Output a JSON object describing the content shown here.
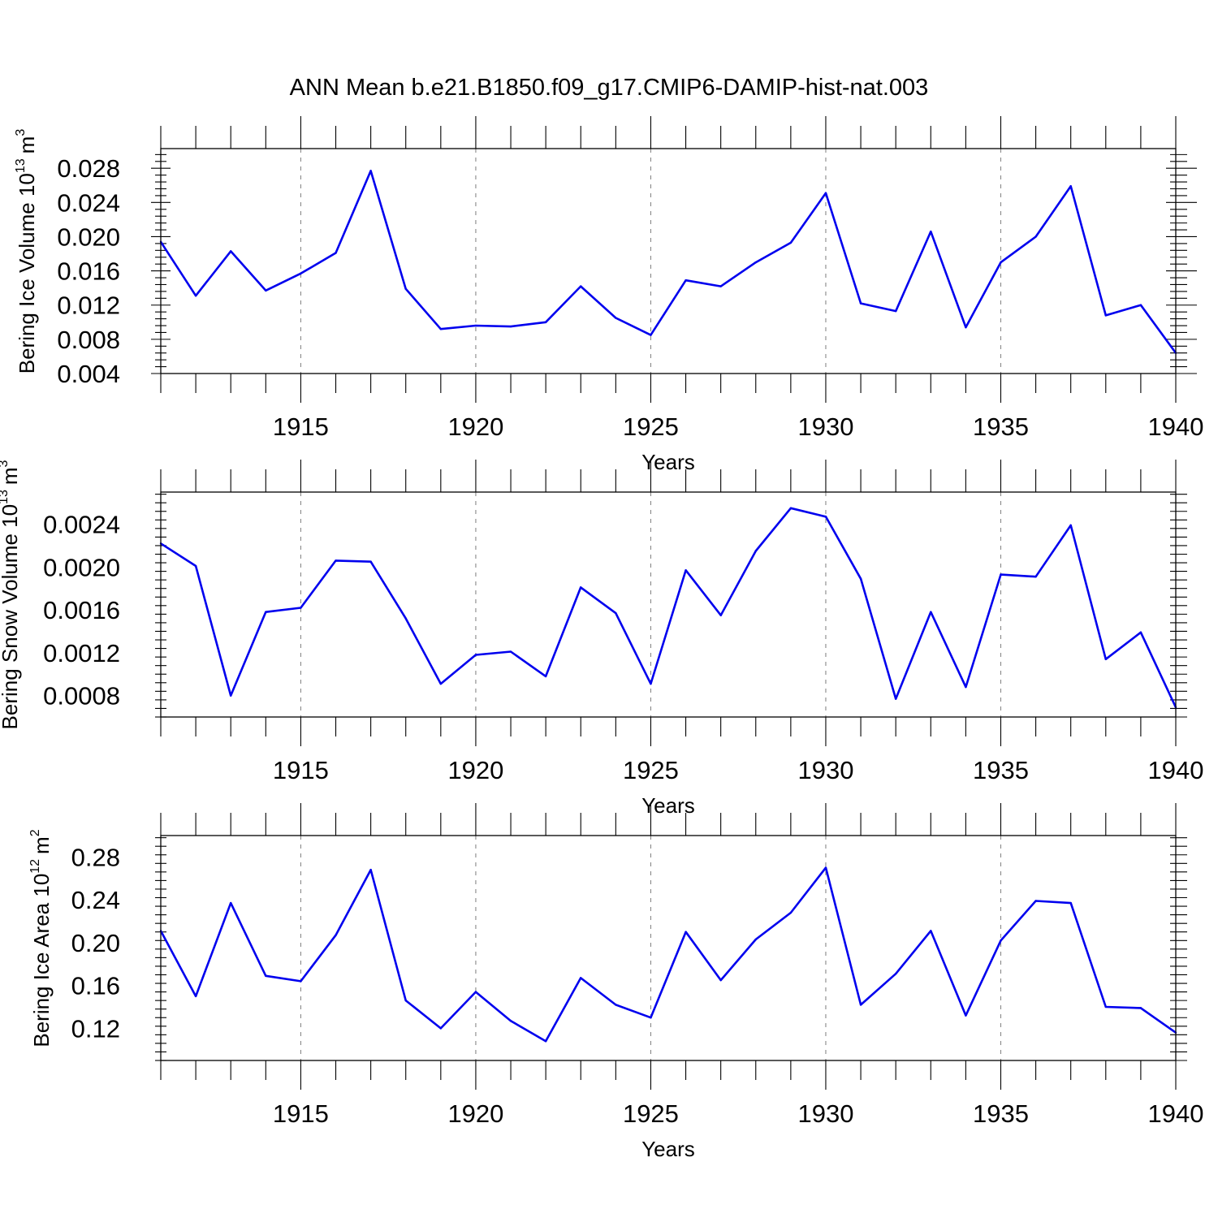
{
  "title": "ANN Mean b.e21.B1850.f09_g17.CMIP6-DAMIP-hist-nat.003",
  "colors": {
    "series": "#0000ee",
    "grid": "#888888",
    "axes": "#000000"
  },
  "chart_data": [
    {
      "type": "line",
      "ylabel": "Bering Ice Volume 10",
      "ylabel_exp": "13",
      "ylabel_unit": "m",
      "ylabel_unit_exp": "3",
      "xlabel": "Years",
      "xlim": [
        1911,
        1940
      ],
      "ylim": [
        0.004,
        0.0303
      ],
      "yticks": [
        0.004,
        0.008,
        0.012,
        0.016,
        0.02,
        0.024,
        0.028
      ],
      "ytick_labels": [
        "0.004",
        "0.008",
        "0.012",
        "0.016",
        "0.020",
        "0.024",
        "0.028"
      ],
      "xticks": [
        1915,
        1920,
        1925,
        1930,
        1935,
        1940
      ],
      "xtick_labels": [
        "1915",
        "1920",
        "1925",
        "1930",
        "1935",
        "1940"
      ],
      "grid": "vertical dashed at major x ticks",
      "x": [
        1911,
        1912,
        1913,
        1914,
        1915,
        1916,
        1917,
        1918,
        1919,
        1920,
        1921,
        1922,
        1923,
        1924,
        1925,
        1926,
        1927,
        1928,
        1929,
        1930,
        1931,
        1932,
        1933,
        1934,
        1935,
        1936,
        1937,
        1938,
        1939,
        1940
      ],
      "y": [
        0.0194,
        0.0131,
        0.0183,
        0.0137,
        0.0157,
        0.0181,
        0.0277,
        0.0139,
        0.0092,
        0.0096,
        0.0095,
        0.01,
        0.0142,
        0.0105,
        0.0085,
        0.0149,
        0.0142,
        0.017,
        0.0193,
        0.0251,
        0.0122,
        0.0113,
        0.0206,
        0.0094,
        0.017,
        0.02,
        0.0259,
        0.0108,
        0.012,
        0.0064
      ]
    },
    {
      "type": "line",
      "ylabel": "Bering Snow Volume 10",
      "ylabel_exp": "13",
      "ylabel_unit": "m",
      "ylabel_unit_exp": "3",
      "xlabel": "Years",
      "xlim": [
        1911,
        1940
      ],
      "ylim": [
        0.0006,
        0.0027
      ],
      "yticks": [
        0.0008,
        0.0012,
        0.0016,
        0.002,
        0.0024
      ],
      "ytick_labels": [
        "0.0008",
        "0.0012",
        "0.0016",
        "0.0020",
        "0.0024"
      ],
      "xticks": [
        1915,
        1920,
        1925,
        1930,
        1935,
        1940
      ],
      "xtick_labels": [
        "1915",
        "1920",
        "1925",
        "1930",
        "1935",
        "1940"
      ],
      "grid": "vertical dashed at major x ticks",
      "x": [
        1911,
        1912,
        1913,
        1914,
        1915,
        1916,
        1917,
        1918,
        1919,
        1920,
        1921,
        1922,
        1923,
        1924,
        1925,
        1926,
        1927,
        1928,
        1929,
        1930,
        1931,
        1932,
        1933,
        1934,
        1935,
        1936,
        1937,
        1938,
        1939,
        1940
      ],
      "y": [
        0.00222,
        0.00201,
        0.0008,
        0.00158,
        0.00162,
        0.00206,
        0.00205,
        0.00152,
        0.00091,
        0.00118,
        0.00121,
        0.00098,
        0.00181,
        0.00157,
        0.00091,
        0.00197,
        0.00155,
        0.00215,
        0.00255,
        0.00247,
        0.00189,
        0.00077,
        0.00158,
        0.00088,
        0.00193,
        0.00191,
        0.00239,
        0.00114,
        0.00139,
        0.00069
      ]
    },
    {
      "type": "line",
      "ylabel": "Bering Ice Area 10",
      "ylabel_exp": "12",
      "ylabel_unit": "m",
      "ylabel_unit_exp": "2",
      "xlabel": "Years",
      "xlim": [
        1911,
        1940
      ],
      "ylim": [
        0.09,
        0.3
      ],
      "yticks": [
        0.12,
        0.16,
        0.2,
        0.24,
        0.28
      ],
      "ytick_labels": [
        "0.12",
        "0.16",
        "0.20",
        "0.24",
        "0.28"
      ],
      "xticks": [
        1915,
        1920,
        1925,
        1930,
        1935,
        1940
      ],
      "xtick_labels": [
        "1915",
        "1920",
        "1925",
        "1930",
        "1935",
        "1940"
      ],
      "grid": "vertical dashed at major x ticks",
      "x": [
        1911,
        1912,
        1913,
        1914,
        1915,
        1916,
        1917,
        1918,
        1919,
        1920,
        1921,
        1922,
        1923,
        1924,
        1925,
        1926,
        1927,
        1928,
        1929,
        1930,
        1931,
        1932,
        1933,
        1934,
        1935,
        1936,
        1937,
        1938,
        1939,
        1940
      ],
      "y": [
        0.211,
        0.15,
        0.237,
        0.169,
        0.164,
        0.207,
        0.268,
        0.146,
        0.12,
        0.154,
        0.127,
        0.108,
        0.167,
        0.142,
        0.13,
        0.21,
        0.165,
        0.203,
        0.228,
        0.27,
        0.142,
        0.171,
        0.211,
        0.132,
        0.202,
        0.239,
        0.237,
        0.14,
        0.139,
        0.116
      ]
    }
  ]
}
